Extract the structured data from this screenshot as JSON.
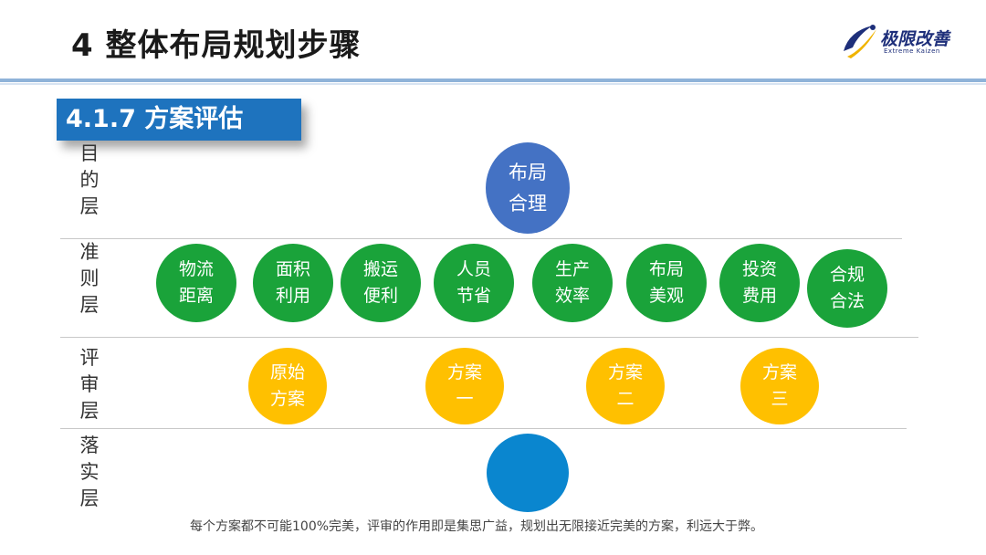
{
  "slide": {
    "title": "4 整体布局规划步骤",
    "section": "4.1.7  方案评估"
  },
  "logo": {
    "name": "极限改善",
    "subtitle": "Extreme Kaizen",
    "icon": "rocket-swoosh-icon",
    "color": "#1e2f7a"
  },
  "layers": [
    {
      "label": [
        "目",
        "的",
        "层"
      ]
    },
    {
      "label": [
        "准",
        "则",
        "层"
      ]
    },
    {
      "label": [
        "评",
        "审",
        "层"
      ]
    },
    {
      "label": [
        "落",
        "实",
        "层"
      ]
    }
  ],
  "goal": {
    "lines": [
      "布局",
      "合理"
    ],
    "color": "#4472c4"
  },
  "criteria": [
    {
      "lines": [
        "物流",
        "距离"
      ]
    },
    {
      "lines": [
        "面积",
        "利用"
      ]
    },
    {
      "lines": [
        "搬运",
        "便利"
      ]
    },
    {
      "lines": [
        "人员",
        "节省"
      ]
    },
    {
      "lines": [
        "生产",
        "效率"
      ]
    },
    {
      "lines": [
        "布局",
        "美观"
      ]
    },
    {
      "lines": [
        "投资",
        "费用"
      ]
    },
    {
      "lines": [
        "合规",
        "合法"
      ]
    }
  ],
  "criteria_color": "#1aa33a",
  "plans": [
    {
      "lines": [
        "原始",
        "方案"
      ]
    },
    {
      "lines": [
        "方案",
        "一"
      ]
    },
    {
      "lines": [
        "方案",
        "二"
      ]
    },
    {
      "lines": [
        "方案",
        "三"
      ]
    }
  ],
  "plans_color": "#ffc000",
  "implementation": {
    "color": "#0a86cf"
  },
  "caption": "每个方案都不可能100%完美，评审的作用即是集思广益，规划出无限接近完美的方案，利远大于弊。"
}
